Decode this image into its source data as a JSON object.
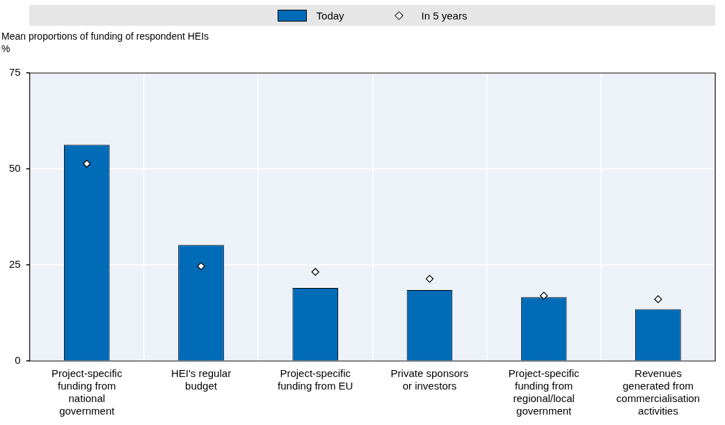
{
  "chart_data": {
    "type": "bar",
    "ylabel": "Mean proportions of funding of respondent HEIs\n%",
    "categories": [
      "Project-specific funding from national government",
      "HEI's regular budget",
      "Project-specific funding from EU",
      "Private sponsors or investors",
      "Project-specific funding from regional/local government",
      "Revenues generated from commercialisation activities"
    ],
    "series": [
      {
        "name": "Today",
        "color": "#006bb6",
        "values": [
          56.3,
          30.2,
          19.0,
          18.5,
          16.6,
          13.5
        ]
      },
      {
        "name": "In 5 years",
        "type": "scatter",
        "color": "#ffffff",
        "x": [
          "Project-specific funding from national government",
          "HEI's regular budget",
          "Project-specific funding from EU",
          "Private sponsors or investors",
          "Project-specific funding from regional/local government",
          "Revenues generated from commercialisation activities"
        ],
        "values": [
          51.4,
          24.7,
          23.2,
          21.4,
          17.0,
          16.1
        ]
      }
    ],
    "marker": "diamond",
    "ylim": [
      0,
      75
    ],
    "yticks": [
      0,
      25,
      50,
      75
    ],
    "grid": true,
    "legend": "top"
  }
}
